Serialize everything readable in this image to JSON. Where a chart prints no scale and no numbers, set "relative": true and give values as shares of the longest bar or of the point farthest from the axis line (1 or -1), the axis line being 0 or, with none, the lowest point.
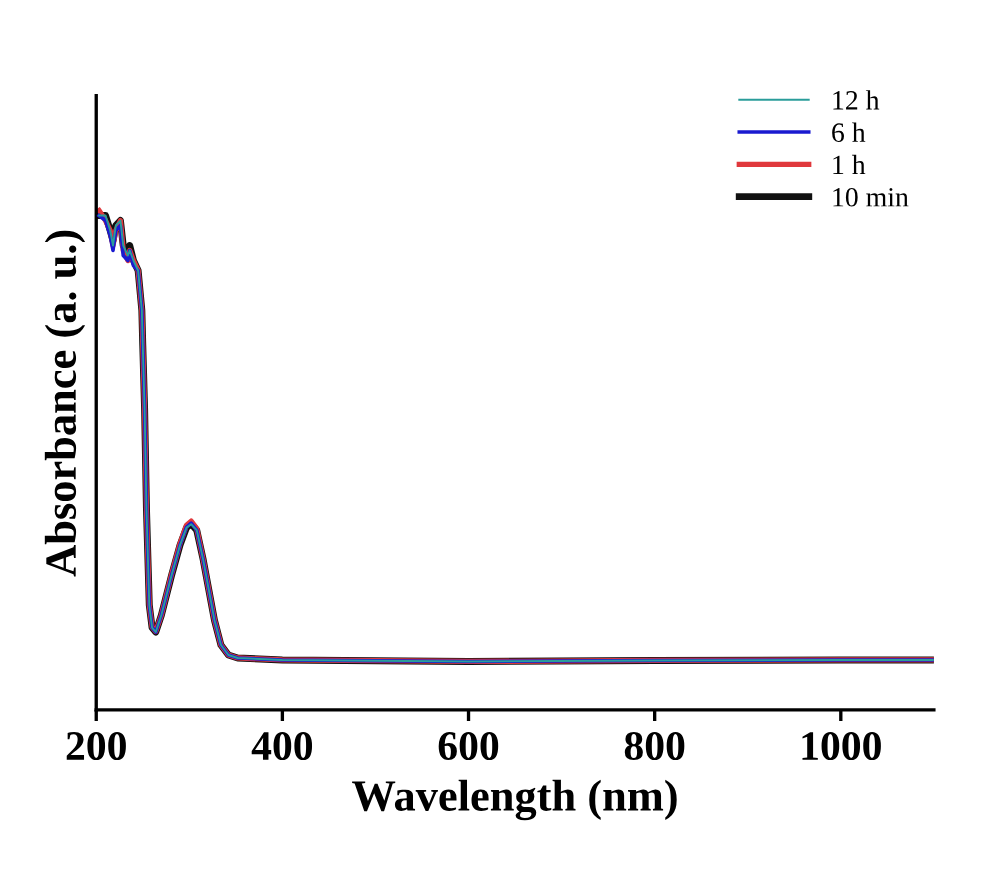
{
  "chart_data": {
    "type": "line",
    "relative": true,
    "xlabel": "Wavelength (nm)",
    "ylabel": "Absorbance (a. u.)",
    "xlim": [
      200,
      1100
    ],
    "xticks": [
      200,
      400,
      600,
      800,
      1000
    ],
    "grid": false,
    "legend": "top right",
    "marker": "none",
    "line_style": "solid",
    "x": [
      203,
      210,
      215,
      218,
      221,
      226,
      229,
      234,
      236,
      240,
      245,
      249,
      250,
      252,
      254,
      257,
      260,
      264,
      270,
      281,
      290,
      297,
      302,
      308,
      315,
      320,
      327,
      334,
      342,
      352,
      400,
      600,
      800,
      1000,
      1100
    ],
    "series": [
      {
        "name": "12 h",
        "color": "#2a9d9a",
        "values": [
          0.99,
          0.99,
          0.96,
          0.93,
          0.97,
          0.98,
          0.93,
          0.91,
          0.92,
          0.9,
          0.88,
          0.8,
          0.73,
          0.6,
          0.4,
          0.21,
          0.165,
          0.156,
          0.19,
          0.27,
          0.33,
          0.365,
          0.372,
          0.36,
          0.3,
          0.25,
          0.18,
          0.13,
          0.11,
          0.104,
          0.1,
          0.097,
          0.099,
          0.1,
          0.1
        ]
      },
      {
        "name": "6 h",
        "color": "#1a1ad0",
        "values": [
          0.99,
          0.98,
          0.95,
          0.92,
          0.96,
          0.97,
          0.91,
          0.9,
          0.92,
          0.89,
          0.88,
          0.8,
          0.73,
          0.6,
          0.4,
          0.21,
          0.165,
          0.156,
          0.19,
          0.27,
          0.33,
          0.366,
          0.374,
          0.36,
          0.3,
          0.25,
          0.18,
          0.13,
          0.11,
          0.104,
          0.1,
          0.097,
          0.099,
          0.1,
          0.1
        ]
      },
      {
        "name": "1 h",
        "color": "#e0383c",
        "values": [
          1.0,
          0.98,
          0.96,
          0.93,
          0.96,
          0.98,
          0.92,
          0.9,
          0.92,
          0.9,
          0.88,
          0.8,
          0.73,
          0.6,
          0.4,
          0.21,
          0.166,
          0.157,
          0.19,
          0.272,
          0.333,
          0.37,
          0.378,
          0.363,
          0.3,
          0.25,
          0.18,
          0.13,
          0.11,
          0.104,
          0.1,
          0.097,
          0.099,
          0.1,
          0.1
        ]
      },
      {
        "name": "10 min",
        "color": "#111111",
        "values": [
          0.99,
          0.99,
          0.96,
          0.94,
          0.97,
          0.98,
          0.93,
          0.92,
          0.93,
          0.9,
          0.88,
          0.8,
          0.73,
          0.6,
          0.4,
          0.21,
          0.165,
          0.156,
          0.19,
          0.27,
          0.33,
          0.365,
          0.373,
          0.36,
          0.3,
          0.25,
          0.18,
          0.13,
          0.11,
          0.104,
          0.1,
          0.097,
          0.099,
          0.1,
          0.1
        ]
      }
    ]
  }
}
